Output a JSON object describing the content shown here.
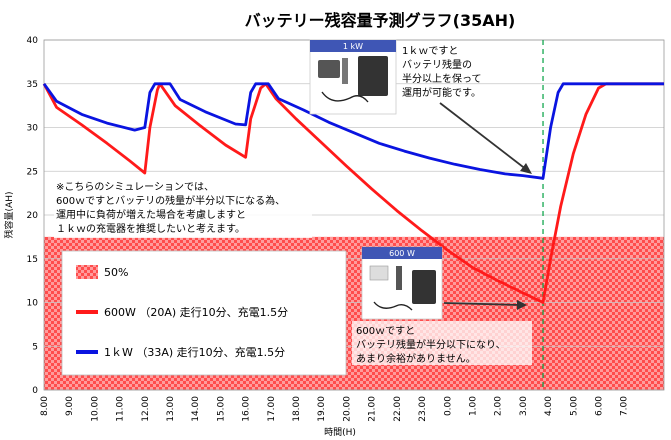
{
  "chart_data": {
    "type": "line",
    "title": "バッテリー残容量予測グラフ(35AH)",
    "xlabel": "時間(H)",
    "ylabel": "残容量(AH)",
    "ylim": [
      0,
      40
    ],
    "yticks": [
      0,
      5,
      10,
      15,
      20,
      25,
      30,
      35,
      40
    ],
    "x_ticks": [
      "8.00",
      "9.00",
      "10.00",
      "11.00",
      "12.00",
      "13.00",
      "14.00",
      "15.00",
      "16.00",
      "17.00",
      "18.00",
      "19.00",
      "20.00",
      "21.00",
      "22.00",
      "23.00",
      "0.00",
      "1.00",
      "2.00",
      "3.00",
      "4.00",
      "5.00",
      "6.00",
      "7.00"
    ],
    "xlim": [
      0,
      24.6
    ],
    "grid": "horizontal",
    "threshold": {
      "label": "50%",
      "value": 17.5,
      "color": "#ff5a5a"
    },
    "marker_line": {
      "x": 19.8,
      "color": "#00a040"
    },
    "series": [
      {
        "name": "600W （20A) 走行10分、充電1.5分",
        "color": "#ff1a1a",
        "points": [
          [
            0,
            35
          ],
          [
            0.5,
            32.3
          ],
          [
            1.5,
            30.3
          ],
          [
            2.5,
            28.2
          ],
          [
            3.4,
            26.2
          ],
          [
            4.0,
            24.8
          ],
          [
            4.2,
            30
          ],
          [
            4.5,
            34.3
          ],
          [
            4.6,
            35
          ],
          [
            5.2,
            32.5
          ],
          [
            6.2,
            30.2
          ],
          [
            7.2,
            28
          ],
          [
            8.0,
            26.6
          ],
          [
            8.2,
            31
          ],
          [
            8.6,
            34.5
          ],
          [
            8.8,
            35
          ],
          [
            9.2,
            33.3
          ],
          [
            10,
            31
          ],
          [
            11,
            28.3
          ],
          [
            12,
            25.6
          ],
          [
            13,
            23
          ],
          [
            14,
            20.5
          ],
          [
            15,
            18.2
          ],
          [
            16,
            16
          ],
          [
            17,
            14
          ],
          [
            18,
            12.5
          ],
          [
            19,
            11.1
          ],
          [
            19.8,
            10
          ],
          [
            20.1,
            15
          ],
          [
            20.5,
            21
          ],
          [
            21.0,
            27
          ],
          [
            21.5,
            31.5
          ],
          [
            22.0,
            34.5
          ],
          [
            22.3,
            35
          ],
          [
            24.6,
            35
          ]
        ]
      },
      {
        "name": "1ｋW （33A) 走行10分、充電1.5分",
        "color": "#0a14e0",
        "points": [
          [
            0,
            35
          ],
          [
            0.5,
            33
          ],
          [
            1.5,
            31.5
          ],
          [
            2.5,
            30.5
          ],
          [
            3.6,
            29.7
          ],
          [
            4.0,
            30
          ],
          [
            4.2,
            34
          ],
          [
            4.4,
            35
          ],
          [
            5.0,
            35
          ],
          [
            5.4,
            33.2
          ],
          [
            6.4,
            31.8
          ],
          [
            7.6,
            30.4
          ],
          [
            8.0,
            30.3
          ],
          [
            8.2,
            34
          ],
          [
            8.4,
            35
          ],
          [
            8.9,
            35
          ],
          [
            9.3,
            33.3
          ],
          [
            10.3,
            32
          ],
          [
            11.3,
            30.6
          ],
          [
            12.3,
            29.4
          ],
          [
            13.3,
            28.2
          ],
          [
            14.3,
            27.3
          ],
          [
            15.3,
            26.5
          ],
          [
            16.3,
            25.8
          ],
          [
            17.3,
            25.2
          ],
          [
            18.3,
            24.7
          ],
          [
            19.0,
            24.5
          ],
          [
            19.8,
            24.2
          ],
          [
            20.1,
            30
          ],
          [
            20.4,
            34
          ],
          [
            20.6,
            35
          ],
          [
            24.6,
            35
          ]
        ]
      }
    ],
    "annotations": {
      "note": [
        "※こちらのシミュレーションでは、",
        "600ｗですとバッテリの残量が半分以下になる為、",
        "運用中に負荷が増えた場合を考慮しますと",
        "１ｋｗの充電器を推奨したいと考えます。"
      ],
      "kw_note": [
        "1ｋｗですと",
        "バッテリ残量の",
        "半分以上を保って",
        "運用が可能です。"
      ],
      "w600_note": [
        "600ｗですと",
        "バッテリ残量が半分以下になり、",
        "あまり余裕がありません。"
      ],
      "photo_1kw_label": "1 kW",
      "photo_600w_label": "600 W"
    }
  }
}
